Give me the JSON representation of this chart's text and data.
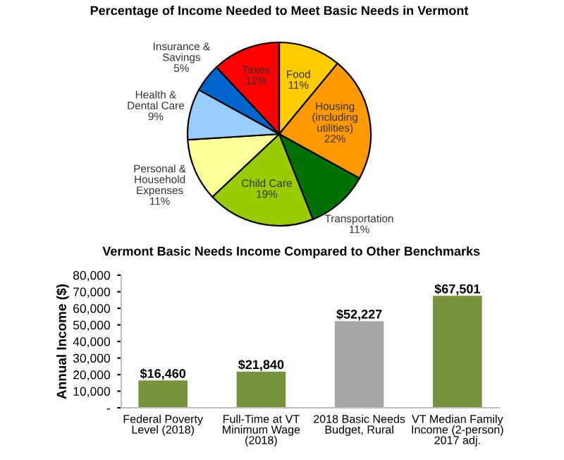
{
  "chart_data": [
    {
      "type": "pie",
      "title": "Percentage of Income Needed to Meet Basic Needs in Vermont",
      "categories": [
        "Food",
        "Housing\n(including\nutilities)",
        "Transportation",
        "Child Care",
        "Personal &\nHousehold\nExpenses",
        "Health &\nDental Care",
        "Insurance &\nSavings",
        "Taxes"
      ],
      "values": [
        11,
        22,
        11,
        19,
        11,
        9,
        5,
        12
      ],
      "value_labels": [
        "11%",
        "22%",
        "11%",
        "19%",
        "11%",
        "9%",
        "5%",
        "12%"
      ],
      "colors": [
        "#ffcc00",
        "#ff9900",
        "#007000",
        "#99cc00",
        "#ffff99",
        "#99ccff",
        "#0066cc",
        "#ff0000"
      ],
      "legend": false
    },
    {
      "type": "bar",
      "title": "Vermont Basic Needs Income Compared to Other Benchmarks",
      "ylabel": "Annual Income ($)",
      "categories": [
        "Federal Poverty\nLevel (2018)",
        "Full-Time at VT\nMinimum Wage\n(2018)",
        "2018 Basic Needs\nBudget, Rural",
        "VT Median Family\nIncome (2-person)\n2017 adj."
      ],
      "values": [
        16460,
        21840,
        52227,
        67501
      ],
      "value_labels": [
        "$16,460",
        "$21,840",
        "$52,227",
        "$67,501"
      ],
      "colors": [
        "#77933c",
        "#77933c",
        "#a6a6a6",
        "#77933c"
      ],
      "ylim": [
        0,
        80000
      ],
      "yticks": [
        {
          "value": 0,
          "label": "-"
        },
        {
          "value": 10000,
          "label": "10,000"
        },
        {
          "value": 20000,
          "label": "20,000"
        },
        {
          "value": 30000,
          "label": "30,000"
        },
        {
          "value": 40000,
          "label": "40,000"
        },
        {
          "value": 50000,
          "label": "50,000"
        },
        {
          "value": 60000,
          "label": "60,000"
        },
        {
          "value": 70000,
          "label": "70,000"
        },
        {
          "value": 80000,
          "label": "80,000"
        }
      ],
      "grid": false,
      "legend": false
    }
  ]
}
